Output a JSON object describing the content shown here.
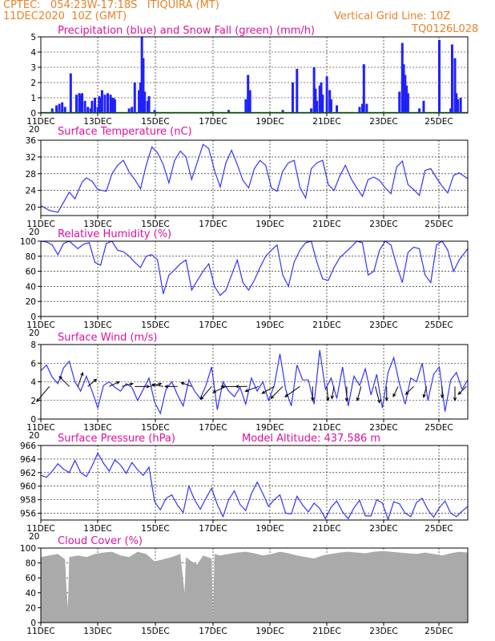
{
  "header": {
    "line1": "CPTEC:   054:23W-17:18S   ITIQUIRA (MT)",
    "line2": "11DEC2020  10Z (GMT)",
    "grid_note": "Vertical Grid Line: 10Z",
    "code": "TQ0126L028"
  },
  "x_axis": {
    "labels": [
      "11DEC",
      "13DEC",
      "15DEC",
      "17DEC",
      "19DEC",
      "21DEC",
      "23DEC",
      "25DEC"
    ],
    "year_fragment": "20"
  },
  "colors": {
    "precip": "#2020ff",
    "snow": "#00aa00",
    "line": "#3333ff",
    "cloud": "#aaaaaa",
    "title": "#e0109a",
    "header": "#e8822a"
  },
  "chart_data": [
    {
      "type": "bar",
      "title": "Precipitation (blue) and Snow Fall (green) (mm/h)",
      "x_range": [
        0,
        15
      ],
      "ylim": [
        0,
        5
      ],
      "yticks": [
        0,
        1,
        2,
        3,
        4,
        5
      ],
      "grid": true,
      "series": [
        {
          "name": "Precipitation",
          "x": [
            0.4,
            0.55,
            0.65,
            0.75,
            0.85,
            1.05,
            1.25,
            1.35,
            1.4,
            1.45,
            1.55,
            1.65,
            1.75,
            1.8,
            1.9,
            2.0,
            2.05,
            2.1,
            2.15,
            2.25,
            2.35,
            2.45,
            2.5,
            2.55,
            2.6,
            3.1,
            3.2,
            3.3,
            3.45,
            3.5,
            3.55,
            3.6,
            3.65,
            3.75,
            3.8,
            4.0,
            6.0,
            6.6,
            7.2,
            7.28,
            7.35,
            8.5,
            8.85,
            9.0,
            9.5,
            9.6,
            9.65,
            9.7,
            9.8,
            9.85,
            9.9,
            10.05,
            10.15,
            10.2,
            10.4,
            11.2,
            11.3,
            11.35,
            11.45,
            12.6,
            12.7,
            12.75,
            12.8,
            12.85,
            12.9,
            13.3,
            13.45,
            14.0,
            14.4,
            14.45,
            14.55,
            14.6,
            14.65,
            14.75
          ],
          "values": [
            0.3,
            0.5,
            0.6,
            0.7,
            0.4,
            2.6,
            1.2,
            1.3,
            1.2,
            1.3,
            0.8,
            0.4,
            0.3,
            0.8,
            1.0,
            0.4,
            1.1,
            1.0,
            1.5,
            1.2,
            1.3,
            1.2,
            1.0,
            1.0,
            0.9,
            0.3,
            0.4,
            2.0,
            1.5,
            2.0,
            5.0,
            3.6,
            1.4,
            0.8,
            1.1,
            0.2,
            0.1,
            0.2,
            0.9,
            2.5,
            1.5,
            0.2,
            2.0,
            2.9,
            0.3,
            3.0,
            1.6,
            0.8,
            1.8,
            2.0,
            1.2,
            2.4,
            1.5,
            0.9,
            0.5,
            0.4,
            0.6,
            3.2,
            0.6,
            1.4,
            4.6,
            3.2,
            2.5,
            1.8,
            1.3,
            0.3,
            0.8,
            4.8,
            0.3,
            4.5,
            3.6,
            1.3,
            0.9,
            1.0
          ]
        },
        {
          "name": "Snow Fall",
          "x": [
            0,
            15
          ],
          "values": [
            0,
            0
          ]
        }
      ]
    },
    {
      "type": "line",
      "title": "Surface Temperature (nC)",
      "x_range": [
        0,
        15
      ],
      "ylim": [
        18,
        36
      ],
      "yticks": [
        20,
        24,
        28,
        32,
        36
      ],
      "grid": true,
      "series": [
        {
          "name": "",
          "x": [
            0,
            0.3,
            0.6,
            0.8,
            1.0,
            1.2,
            1.45,
            1.6,
            1.8,
            2.0,
            2.3,
            2.5,
            2.7,
            2.9,
            3.1,
            3.3,
            3.5,
            3.7,
            3.9,
            4.1,
            4.3,
            4.5,
            4.7,
            4.9,
            5.1,
            5.3,
            5.5,
            5.7,
            5.9,
            6.1,
            6.3,
            6.5,
            6.7,
            6.9,
            7.1,
            7.3,
            7.5,
            7.7,
            7.9,
            8.1,
            8.3,
            8.5,
            8.7,
            8.9,
            9.1,
            9.3,
            9.5,
            9.7,
            9.9,
            10.1,
            10.3,
            10.5,
            10.7,
            10.9,
            11.1,
            11.3,
            11.5,
            11.7,
            11.9,
            12.1,
            12.3,
            12.5,
            12.7,
            12.9,
            13.1,
            13.3,
            13.5,
            13.7,
            13.9,
            14.1,
            14.3,
            14.5,
            14.7,
            15.0
          ],
          "values": [
            20.4,
            19.2,
            18.8,
            21.2,
            23.6,
            22.0,
            26.0,
            27.0,
            26.2,
            24.2,
            23.8,
            28.0,
            30.0,
            31.2,
            28.4,
            26.6,
            24.4,
            30.0,
            34.4,
            33.0,
            30.2,
            25.8,
            31.2,
            33.4,
            32.0,
            26.6,
            30.8,
            35.0,
            34.0,
            28.8,
            24.8,
            30.6,
            33.6,
            30.2,
            26.4,
            24.6,
            29.2,
            31.2,
            30.0,
            24.6,
            23.8,
            28.6,
            30.6,
            31.2,
            24.8,
            22.2,
            29.2,
            30.6,
            31.2,
            25.4,
            24.0,
            27.4,
            30.0,
            26.8,
            24.6,
            22.6,
            26.6,
            27.2,
            26.4,
            24.6,
            23.2,
            29.6,
            31.0,
            25.4,
            24.2,
            22.8,
            28.8,
            29.2,
            27.0,
            25.0,
            23.4,
            27.6,
            28.2,
            26.8
          ]
        }
      ]
    },
    {
      "type": "line",
      "title": "Relative Humidity (%)",
      "x_range": [
        0,
        15
      ],
      "ylim": [
        0,
        100
      ],
      "yticks": [
        0,
        20,
        40,
        60,
        80,
        100
      ],
      "grid": true,
      "series": [
        {
          "name": "",
          "x": [
            0,
            0.2,
            0.4,
            0.6,
            0.8,
            1.0,
            1.3,
            1.5,
            1.7,
            1.9,
            2.1,
            2.3,
            2.5,
            2.7,
            2.9,
            3.1,
            3.3,
            3.5,
            3.7,
            3.9,
            4.1,
            4.3,
            4.5,
            4.7,
            4.9,
            5.1,
            5.3,
            5.5,
            5.7,
            5.9,
            6.1,
            6.3,
            6.5,
            6.7,
            6.9,
            7.1,
            7.3,
            7.5,
            7.7,
            7.9,
            8.1,
            8.3,
            8.5,
            8.7,
            8.9,
            9.1,
            9.3,
            9.5,
            9.7,
            9.9,
            10.1,
            10.3,
            10.5,
            10.7,
            10.9,
            11.1,
            11.3,
            11.5,
            11.7,
            11.9,
            12.1,
            12.3,
            12.5,
            12.7,
            12.9,
            13.1,
            13.3,
            13.5,
            13.7,
            13.9,
            14.1,
            14.3,
            14.5,
            14.7,
            15.0
          ],
          "values": [
            100,
            99,
            95,
            82,
            97,
            100,
            90,
            96,
            98,
            72,
            68,
            97,
            100,
            88,
            86,
            80,
            72,
            65,
            80,
            82,
            75,
            30,
            55,
            62,
            70,
            75,
            35,
            48,
            60,
            70,
            40,
            28,
            35,
            55,
            75,
            45,
            35,
            48,
            65,
            80,
            88,
            95,
            55,
            40,
            72,
            88,
            98,
            100,
            72,
            50,
            48,
            65,
            78,
            85,
            92,
            100,
            98,
            55,
            60,
            88,
            100,
            95,
            68,
            45,
            85,
            92,
            90,
            55,
            45,
            95,
            100,
            88,
            60,
            75,
            90
          ]
        }
      ]
    },
    {
      "type": "line",
      "title": "Surface Wind (m/s)",
      "x_range": [
        0,
        15
      ],
      "ylim": [
        0,
        8
      ],
      "yticks": [
        0,
        2,
        4,
        6,
        8
      ],
      "grid": true,
      "series": [
        {
          "name": "",
          "x": [
            0,
            0.2,
            0.4,
            0.6,
            0.8,
            1.0,
            1.2,
            1.4,
            1.6,
            1.8,
            2.0,
            2.2,
            2.4,
            2.6,
            2.8,
            3.0,
            3.2,
            3.4,
            3.6,
            3.8,
            4.0,
            4.2,
            4.4,
            4.6,
            4.8,
            5.0,
            5.2,
            5.4,
            5.6,
            5.8,
            6.0,
            6.2,
            6.4,
            6.6,
            6.8,
            7.0,
            7.2,
            7.4,
            7.6,
            7.8,
            8.0,
            8.2,
            8.4,
            8.6,
            8.8,
            9.0,
            9.2,
            9.4,
            9.6,
            9.8,
            10.0,
            10.2,
            10.4,
            10.6,
            10.8,
            11.0,
            11.2,
            11.4,
            11.6,
            11.8,
            12.0,
            12.2,
            12.4,
            12.6,
            12.8,
            13.0,
            13.2,
            13.4,
            13.6,
            13.8,
            14.0,
            14.2,
            14.4,
            14.6,
            14.8,
            15.0
          ],
          "values": [
            5.2,
            5.8,
            4.5,
            3.8,
            5.5,
            6.2,
            4.0,
            3.0,
            4.6,
            3.0,
            1.2,
            3.6,
            4.0,
            3.4,
            3.0,
            3.8,
            3.4,
            2.0,
            3.2,
            4.4,
            1.8,
            0.6,
            3.2,
            4.0,
            2.6,
            1.4,
            4.2,
            3.0,
            2.2,
            3.6,
            5.6,
            1.0,
            4.0,
            3.0,
            2.4,
            3.4,
            1.6,
            4.4,
            3.0,
            4.0,
            2.0,
            3.6,
            7.0,
            3.2,
            1.4,
            5.8,
            4.2,
            4.2,
            1.6,
            7.4,
            3.2,
            4.4,
            2.2,
            5.6,
            1.4,
            4.6,
            3.6,
            5.4,
            2.6,
            4.8,
            1.2,
            5.0,
            6.6,
            3.8,
            1.6,
            4.4,
            4.0,
            6.0,
            2.0,
            4.8,
            5.6,
            0.8,
            4.2,
            5.0,
            3.2,
            4.2
          ]
        }
      ],
      "wind_vectors": {
        "x": [
          0.3,
          1.0,
          1.3,
          1.65,
          2.4,
          2.85,
          3.3,
          3.85,
          4.3,
          4.8,
          5.3,
          6.0,
          6.5,
          6.85,
          7.25,
          7.65,
          8.2,
          8.5,
          9.1,
          9.55,
          10.05,
          10.3,
          10.75,
          11.25,
          11.75,
          12.15,
          12.55,
          13.1,
          13.55,
          14.1,
          14.55,
          14.95
        ],
        "angle_deg": [
          230,
          135,
          70,
          40,
          25,
          15,
          0,
          15,
          170,
          180,
          160,
          230,
          205,
          180,
          180,
          200,
          210,
          225,
          215,
          270,
          275,
          260,
          270,
          255,
          285,
          270,
          245,
          225,
          255,
          270,
          270,
          225
        ],
        "speed": [
          3.5,
          2.5,
          2.6,
          2.0,
          2.0,
          2.0,
          2.6,
          2.0,
          2.0,
          2.2,
          2.0,
          3.0,
          2.5,
          2.6,
          2.0,
          2.5,
          2.5,
          3.0,
          3.2,
          2.5,
          2.5,
          2.2,
          2.6,
          2.6,
          3.0,
          2.5,
          2.0,
          2.0,
          2.0,
          2.0,
          2.5,
          2.0
        ]
      }
    },
    {
      "type": "line",
      "title": "Surface Pressure (hPa)",
      "annotation": "Model Altitude: 437.586  m",
      "x_range": [
        0,
        15
      ],
      "ylim": [
        955,
        966
      ],
      "yticks": [
        956,
        958,
        960,
        962,
        964,
        966
      ],
      "grid": true,
      "series": [
        {
          "name": "",
          "x": [
            0,
            0.2,
            0.4,
            0.6,
            0.8,
            1.0,
            1.2,
            1.4,
            1.6,
            1.8,
            2.0,
            2.2,
            2.4,
            2.6,
            2.8,
            3.0,
            3.2,
            3.4,
            3.6,
            3.8,
            4.0,
            4.2,
            4.4,
            4.6,
            4.8,
            5.0,
            5.2,
            5.4,
            5.6,
            5.8,
            6.0,
            6.2,
            6.4,
            6.6,
            6.8,
            7.0,
            7.2,
            7.4,
            7.6,
            7.8,
            8.0,
            8.2,
            8.4,
            8.6,
            8.8,
            9.0,
            9.2,
            9.4,
            9.6,
            9.8,
            10.0,
            10.2,
            10.4,
            10.6,
            10.8,
            11.0,
            11.2,
            11.4,
            11.6,
            11.8,
            12.0,
            12.2,
            12.4,
            12.6,
            12.8,
            13.0,
            13.2,
            13.4,
            13.6,
            13.8,
            14.0,
            14.2,
            14.4,
            14.6,
            14.8,
            15.0
          ],
          "values": [
            961.6,
            961.3,
            962.2,
            963.3,
            962.5,
            962.0,
            963.8,
            962.0,
            961.4,
            963.0,
            964.9,
            963.4,
            962.2,
            963.9,
            963.1,
            961.9,
            963.5,
            962.4,
            961.6,
            962.8,
            957.7,
            956.5,
            958.2,
            958.7,
            957.2,
            956.1,
            960.0,
            958.0,
            956.6,
            958.2,
            959.7,
            957.3,
            955.5,
            958.0,
            959.3,
            957.3,
            956.4,
            958.9,
            960.6,
            958.9,
            957.0,
            958.0,
            958.7,
            956.0,
            955.9,
            958.5,
            957.2,
            956.2,
            957.5,
            956.7,
            955.2,
            956.9,
            957.8,
            956.2,
            955.2,
            956.8,
            957.9,
            955.6,
            955.6,
            958.0,
            957.5,
            955.1,
            957.7,
            957.4,
            956.0,
            955.5,
            957.6,
            958.2,
            956.5,
            955.4,
            956.8,
            957.8,
            956.0,
            955.5,
            956.3,
            957.0
          ]
        }
      ]
    },
    {
      "type": "area",
      "title": "Cloud Cover (%)",
      "x_range": [
        0,
        15
      ],
      "ylim": [
        0,
        100
      ],
      "yticks": [
        0,
        20,
        40,
        60,
        80,
        100
      ],
      "grid": true,
      "series": [
        {
          "name": "",
          "x": [
            0,
            0.3,
            0.6,
            0.85,
            0.9,
            0.95,
            1.0,
            1.3,
            1.6,
            1.9,
            2.2,
            2.5,
            2.8,
            3.1,
            3.4,
            3.7,
            4.0,
            4.3,
            4.6,
            4.9,
            5.05,
            5.1,
            5.3,
            5.5,
            5.7,
            6.0,
            6.05,
            6.1,
            6.3,
            6.6,
            6.9,
            7.2,
            7.5,
            7.8,
            8.1,
            8.4,
            8.7,
            9.0,
            9.3,
            9.6,
            9.9,
            10.2,
            10.5,
            10.8,
            11.1,
            11.4,
            11.7,
            12.0,
            12.3,
            12.6,
            12.9,
            13.2,
            13.5,
            13.8,
            14.1,
            14.4,
            14.7,
            15.0
          ],
          "values": [
            88,
            90,
            92,
            85,
            45,
            20,
            88,
            90,
            88,
            92,
            94,
            95,
            90,
            88,
            95,
            92,
            82,
            85,
            88,
            92,
            40,
            88,
            82,
            78,
            90,
            86,
            5,
            92,
            90,
            92,
            94,
            95,
            93,
            90,
            92,
            95,
            93,
            90,
            88,
            86,
            90,
            92,
            94,
            95,
            94,
            93,
            95,
            96,
            95,
            94,
            93,
            92,
            94,
            92,
            90,
            93,
            95,
            94
          ]
        }
      ]
    }
  ]
}
